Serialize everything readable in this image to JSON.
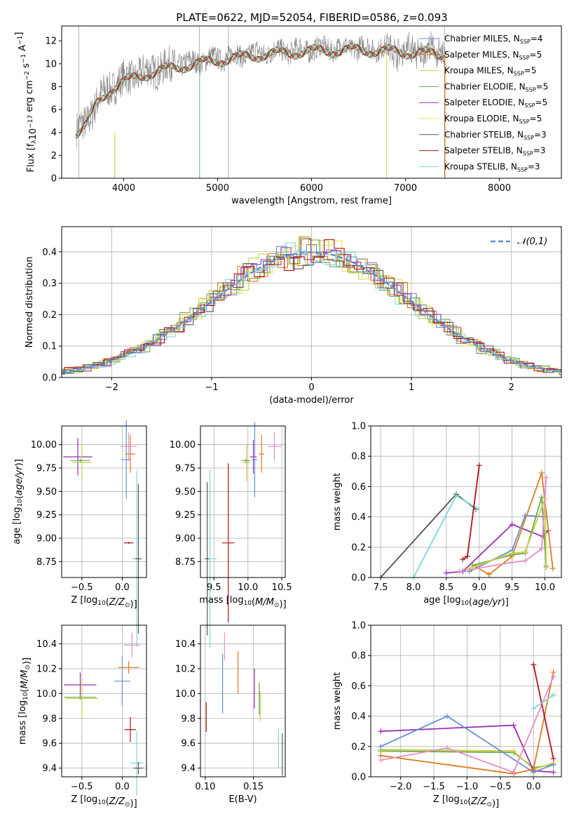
{
  "figure": {
    "title": "PLATE=0622, MJD=52054, FIBERID=0586, z=0.093"
  },
  "colors": {
    "c0": "#6a8fd8",
    "c1": "#e07a1c",
    "c2": "#cbcf3c",
    "c3": "#6aa84f",
    "c4": "#9b2fb5",
    "c5": "#e8e056",
    "c6": "#555555",
    "c7": "#b0121b",
    "c8": "#7fd6d6",
    "c_extra_pink": "#e38ec8",
    "c_extra_green": "#a8e060",
    "grid": "#b0b0b0"
  },
  "chart_data": [
    {
      "id": "spectrum",
      "type": "line",
      "title": "PLATE=0622, MJD=52054, FIBERID=0586, z=0.093",
      "xlabel": "wavelength [Angstrom, rest frame]",
      "ylabel": "Flux [f_λ10^-17 erg cm^-2 s^-1 A^-1]",
      "xlim": [
        3340,
        8660
      ],
      "ylim": [
        0,
        13.3
      ],
      "xticks": [
        4000,
        5000,
        6000,
        7000,
        8000
      ],
      "yticks": [
        0,
        2,
        4,
        6,
        8,
        10,
        12
      ],
      "grid": false,
      "legend_position": "top-right",
      "legend": [
        {
          "base": "Chabrier MILES, N",
          "sub": "SSP",
          "tail": "=4",
          "color": "#6a8fd8"
        },
        {
          "base": "Salpeter MILES, N",
          "sub": "SSP",
          "tail": "=5",
          "color": "#e07a1c"
        },
        {
          "base": "Kroupa MILES, N",
          "sub": "SSP",
          "tail": "=5",
          "color": "#cbcf3c"
        },
        {
          "base": "Chabrier ELODIE, N",
          "sub": "SSP",
          "tail": "=5",
          "color": "#6aa84f"
        },
        {
          "base": "Salpeter ELODIE, N",
          "sub": "SSP",
          "tail": "=5",
          "color": "#9b2fb5"
        },
        {
          "base": "Kroupa ELODIE, N",
          "sub": "SSP",
          "tail": "=5",
          "color": "#e8e056"
        },
        {
          "base": "Chabrier STELIB, N",
          "sub": "SSP",
          "tail": "=3",
          "color": "#555555"
        },
        {
          "base": "Salpeter STELIB, N",
          "sub": "SSP",
          "tail": "=3",
          "color": "#b0121b"
        },
        {
          "base": "Kroupa STELIB, N",
          "sub": "SSP",
          "tail": "=3",
          "color": "#7fd6d6"
        }
      ],
      "data_envelope": {
        "x": [
          3500,
          3600,
          3700,
          3800,
          3900,
          4000,
          4200,
          4500,
          5000,
          5500,
          6000,
          6500,
          7000,
          7400
        ],
        "y": [
          4.2,
          4.8,
          6.5,
          7.5,
          8.2,
          8.6,
          9.2,
          9.8,
          10.5,
          11.0,
          11.3,
          11.4,
          11.2,
          11.0
        ]
      }
    },
    {
      "id": "residuals",
      "type": "line",
      "xlabel": "(data-model)/error",
      "ylabel": "Normed distribution",
      "xlim": [
        -2.5,
        2.5
      ],
      "ylim": [
        0,
        0.48
      ],
      "xticks": [
        -2,
        -1,
        0,
        1,
        2
      ],
      "yticks": [
        0.0,
        0.1,
        0.2,
        0.3,
        0.4
      ],
      "grid": true,
      "legend_position": "top-right",
      "legend_label": "𝒩(0,1)"
    },
    {
      "id": "age_vs_Z",
      "type": "scatter",
      "xlabel": "Z [log10(Z/Z☉)]",
      "ylabel": "age  [log10(age/yr)]",
      "xlim": [
        -0.75,
        0.3
      ],
      "ylim": [
        8.58,
        10.2
      ],
      "xticks": [
        -0.5,
        0.0
      ],
      "yticks": [
        8.75,
        9.0,
        9.25,
        9.5,
        9.75,
        10.0
      ],
      "grid": true,
      "points": [
        {
          "x": -0.55,
          "y": 9.87,
          "color": "#9b2fb5"
        },
        {
          "x": -0.5,
          "y": 9.81,
          "color": "#cbcf3c"
        },
        {
          "x": -0.52,
          "y": 9.83,
          "color": "#6aa84f"
        },
        {
          "x": 0.05,
          "y": 9.84,
          "color": "#6a8fd8"
        },
        {
          "x": 0.1,
          "y": 9.9,
          "color": "#e07a1c"
        },
        {
          "x": 0.08,
          "y": 9.98,
          "color": "#e38ec8"
        },
        {
          "x": 0.08,
          "y": 8.95,
          "color": "#b0121b"
        },
        {
          "x": 0.18,
          "y": 8.78,
          "color": "#7fd6d6"
        },
        {
          "x": 0.2,
          "y": 8.78,
          "color": "#555555"
        }
      ]
    },
    {
      "id": "age_vs_mass",
      "type": "scatter",
      "xlabel": "mass [log10(M/M☉)]",
      "ylabel": "",
      "xlim": [
        9.3,
        10.55
      ],
      "ylim": [
        8.58,
        10.2
      ],
      "xticks": [
        9.5,
        10.0,
        10.5
      ],
      "yticks": [
        8.75,
        9.0,
        9.25,
        9.5,
        9.75,
        10.0
      ],
      "grid": true,
      "points": [
        {
          "x": 10.08,
          "y": 9.87,
          "color": "#9b2fb5"
        },
        {
          "x": 9.98,
          "y": 9.81,
          "color": "#cbcf3c"
        },
        {
          "x": 9.97,
          "y": 9.83,
          "color": "#6aa84f"
        },
        {
          "x": 10.1,
          "y": 9.84,
          "color": "#6a8fd8"
        },
        {
          "x": 10.2,
          "y": 9.9,
          "color": "#e07a1c"
        },
        {
          "x": 10.39,
          "y": 9.98,
          "color": "#e38ec8"
        },
        {
          "x": 9.71,
          "y": 8.95,
          "color": "#b0121b"
        },
        {
          "x": 9.44,
          "y": 8.78,
          "color": "#7fd6d6"
        },
        {
          "x": 9.4,
          "y": 8.78,
          "color": "#555555"
        }
      ]
    },
    {
      "id": "weight_vs_age",
      "type": "line",
      "xlabel": "age  [log10(age/yr)]",
      "ylabel": "mass weight",
      "xlim": [
        7.35,
        10.25
      ],
      "ylim": [
        0,
        1.0
      ],
      "xticks": [
        7.5,
        8.0,
        8.5,
        9.0,
        9.5,
        10.0
      ],
      "yticks": [
        0.0,
        0.2,
        0.4,
        0.6,
        0.8,
        1.0
      ],
      "grid": true,
      "series": [
        {
          "color": "#555555",
          "x": [
            7.5,
            8.65,
            8.95
          ],
          "y": [
            0.0,
            0.55,
            0.45
          ]
        },
        {
          "color": "#7fd6d6",
          "x": [
            8.0,
            8.65,
            8.95
          ],
          "y": [
            0.0,
            0.54,
            0.46
          ]
        },
        {
          "color": "#b0121b",
          "x": [
            8.75,
            8.82,
            9.0
          ],
          "y": [
            0.12,
            0.14,
            0.74
          ]
        },
        {
          "color": "#9b2fb5",
          "x": [
            8.5,
            8.75,
            9.5,
            9.97,
            10.05
          ],
          "y": [
            0.03,
            0.04,
            0.35,
            0.27,
            0.31
          ]
        },
        {
          "color": "#e07a1c",
          "x": [
            8.95,
            9.15,
            9.5,
            9.95,
            10.12
          ],
          "y": [
            0.07,
            0.02,
            0.14,
            0.69,
            0.06
          ]
        },
        {
          "color": "#6a8fd8",
          "x": [
            8.85,
            9.5,
            9.7,
            10.0
          ],
          "y": [
            0.04,
            0.18,
            0.41,
            0.4
          ]
        },
        {
          "color": "#6aa84f",
          "x": [
            8.9,
            9.5,
            9.7,
            9.95,
            10.02
          ],
          "y": [
            0.08,
            0.15,
            0.16,
            0.53,
            0.07
          ]
        },
        {
          "color": "#cbcf3c",
          "x": [
            8.85,
            9.5,
            9.7,
            10.0,
            10.02
          ],
          "y": [
            0.06,
            0.16,
            0.17,
            0.52,
            0.08
          ]
        },
        {
          "color": "#e38ec8",
          "x": [
            8.7,
            9.5,
            9.7,
            9.95,
            10.02
          ],
          "y": [
            0.04,
            0.1,
            0.11,
            0.19,
            0.66
          ]
        }
      ]
    },
    {
      "id": "mass_vs_Z",
      "type": "scatter",
      "xlabel": "Z [log10(Z/Z☉)]",
      "ylabel": "mass [log10(M/M☉)]",
      "xlim": [
        -0.75,
        0.3
      ],
      "ylim": [
        9.33,
        10.55
      ],
      "xticks": [
        -0.5,
        0.0
      ],
      "yticks": [
        9.4,
        9.6,
        9.8,
        10.0,
        10.2,
        10.4
      ],
      "grid": true,
      "points": [
        {
          "x": -0.52,
          "y": 10.07,
          "color": "#9b2fb5"
        },
        {
          "x": -0.5,
          "y": 9.96,
          "color": "#cbcf3c"
        },
        {
          "x": -0.52,
          "y": 9.97,
          "color": "#6aa84f"
        },
        {
          "x": 0.0,
          "y": 10.1,
          "color": "#6a8fd8"
        },
        {
          "x": 0.08,
          "y": 10.21,
          "color": "#e07a1c"
        },
        {
          "x": 0.12,
          "y": 10.39,
          "color": "#e38ec8"
        },
        {
          "x": 0.1,
          "y": 9.71,
          "color": "#b0121b"
        },
        {
          "x": 0.18,
          "y": 9.44,
          "color": "#7fd6d6"
        },
        {
          "x": 0.2,
          "y": 9.4,
          "color": "#555555"
        }
      ]
    },
    {
      "id": "mass_vs_EBV",
      "type": "scatter",
      "xlabel": "E(B-V)",
      "ylabel": "",
      "xlim": [
        0.095,
        0.183
      ],
      "ylim": [
        9.33,
        10.55
      ],
      "xticks": [
        0.1,
        0.15
      ],
      "yticks": [
        9.4,
        9.6,
        9.8,
        10.0,
        10.2,
        10.4
      ],
      "grid": true,
      "points": [
        {
          "x": 0.101,
          "y": 9.81,
          "color": "#b0121b"
        },
        {
          "x": 0.118,
          "y": 10.08,
          "color": "#6a8fd8"
        },
        {
          "x": 0.12,
          "y": 10.38,
          "color": "#e38ec8"
        },
        {
          "x": 0.134,
          "y": 10.17,
          "color": "#e07a1c"
        },
        {
          "x": 0.151,
          "y": 10.04,
          "color": "#9b2fb5"
        },
        {
          "x": 0.156,
          "y": 9.96,
          "color": "#6aa84f"
        },
        {
          "x": 0.157,
          "y": 9.9,
          "color": "#cbcf3c"
        },
        {
          "x": 0.176,
          "y": 9.56,
          "color": "#7fd6d6"
        },
        {
          "x": 0.18,
          "y": 9.51,
          "color": "#555555"
        }
      ]
    },
    {
      "id": "weight_vs_Z",
      "type": "line",
      "xlabel": "Z [log10(Z/Z☉)]",
      "ylabel": "mass weight",
      "xlim": [
        -2.45,
        0.42
      ],
      "ylim": [
        0,
        1.0
      ],
      "xticks": [
        -2.0,
        -1.5,
        -1.0,
        -0.5,
        0.0
      ],
      "yticks": [
        0.0,
        0.2,
        0.4,
        0.6,
        0.8,
        1.0
      ],
      "grid": true,
      "series": [
        {
          "color": "#6aa84f",
          "x": [
            -2.3,
            -0.3,
            0.0,
            0.3
          ],
          "y": [
            0.17,
            0.16,
            0.06,
            0.08
          ]
        },
        {
          "color": "#cbcf3c",
          "x": [
            -2.3,
            -0.3,
            0.0,
            0.3
          ],
          "y": [
            0.18,
            0.17,
            0.05,
            0.09
          ]
        },
        {
          "color": "#9b2fb5",
          "x": [
            -2.3,
            -0.3,
            0.0,
            0.3
          ],
          "y": [
            0.3,
            0.34,
            0.04,
            0.03
          ]
        },
        {
          "color": "#6a8fd8",
          "x": [
            -2.3,
            -1.3,
            0.0,
            0.3
          ],
          "y": [
            0.2,
            0.4,
            0.03,
            0.08
          ]
        },
        {
          "color": "#e07a1c",
          "x": [
            -2.3,
            -0.3,
            0.0,
            0.3
          ],
          "y": [
            0.14,
            0.02,
            0.05,
            0.69
          ]
        },
        {
          "color": "#e38ec8",
          "x": [
            -2.3,
            -1.3,
            -0.3,
            0.3
          ],
          "y": [
            0.11,
            0.19,
            0.03,
            0.66
          ]
        },
        {
          "color": "#b0121b",
          "x": [
            0.0,
            0.3
          ],
          "y": [
            0.74,
            0.12
          ]
        },
        {
          "color": "#7fd6d6",
          "x": [
            0.0,
            0.3
          ],
          "y": [
            0.45,
            0.54
          ]
        }
      ]
    }
  ]
}
